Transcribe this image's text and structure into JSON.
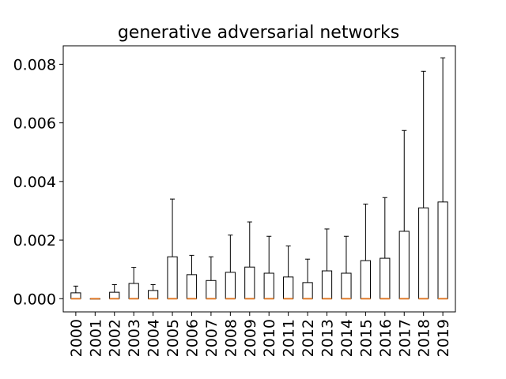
{
  "chart_data": {
    "type": "boxplot",
    "title": "generative adversarial networks",
    "xlabel": "",
    "ylabel": "",
    "categories": [
      "2000",
      "2001",
      "2002",
      "2003",
      "2004",
      "2005",
      "2006",
      "2007",
      "2008",
      "2009",
      "2010",
      "2011",
      "2012",
      "2013",
      "2014",
      "2015",
      "2016",
      "2017",
      "2018",
      "2019"
    ],
    "boxes": [
      {
        "category": "2000",
        "whislo": 0,
        "q1": 0,
        "med": 0,
        "q3": 0.0002,
        "whishi": 0.00043
      },
      {
        "category": "2001",
        "whislo": 0,
        "q1": 0,
        "med": 0,
        "q3": 0,
        "whishi": 0
      },
      {
        "category": "2002",
        "whislo": 0,
        "q1": 0,
        "med": 0,
        "q3": 0.00022,
        "whishi": 0.00048
      },
      {
        "category": "2003",
        "whislo": 0,
        "q1": 0,
        "med": 0,
        "q3": 0.00052,
        "whishi": 0.00107
      },
      {
        "category": "2004",
        "whislo": 0,
        "q1": 0,
        "med": 0,
        "q3": 0.00028,
        "whishi": 0.00048
      },
      {
        "category": "2005",
        "whislo": 0,
        "q1": 0,
        "med": 0,
        "q3": 0.00143,
        "whishi": 0.0034
      },
      {
        "category": "2006",
        "whislo": 0,
        "q1": 0,
        "med": 0,
        "q3": 0.00082,
        "whishi": 0.00148
      },
      {
        "category": "2007",
        "whislo": 0,
        "q1": 0,
        "med": 0,
        "q3": 0.00062,
        "whishi": 0.00143
      },
      {
        "category": "2008",
        "whislo": 0,
        "q1": 0,
        "med": 0,
        "q3": 0.0009,
        "whishi": 0.00217
      },
      {
        "category": "2009",
        "whislo": 0,
        "q1": 0,
        "med": 0,
        "q3": 0.00108,
        "whishi": 0.00262
      },
      {
        "category": "2010",
        "whislo": 0,
        "q1": 0,
        "med": 0,
        "q3": 0.00087,
        "whishi": 0.00213
      },
      {
        "category": "2011",
        "whislo": 0,
        "q1": 0,
        "med": 0,
        "q3": 0.00074,
        "whishi": 0.0018
      },
      {
        "category": "2012",
        "whislo": 0,
        "q1": 0,
        "med": 0,
        "q3": 0.00055,
        "whishi": 0.00135
      },
      {
        "category": "2013",
        "whislo": 0,
        "q1": 0,
        "med": 0,
        "q3": 0.00095,
        "whishi": 0.00238
      },
      {
        "category": "2014",
        "whislo": 0,
        "q1": 0,
        "med": 0,
        "q3": 0.00087,
        "whishi": 0.00213
      },
      {
        "category": "2015",
        "whislo": 0,
        "q1": 0,
        "med": 0,
        "q3": 0.0013,
        "whishi": 0.00323
      },
      {
        "category": "2016",
        "whislo": 0,
        "q1": 0,
        "med": 0,
        "q3": 0.00138,
        "whishi": 0.00345
      },
      {
        "category": "2017",
        "whislo": 0,
        "q1": 0,
        "med": 0,
        "q3": 0.0023,
        "whishi": 0.00574
      },
      {
        "category": "2018",
        "whislo": 0,
        "q1": 0,
        "med": 0,
        "q3": 0.0031,
        "whishi": 0.00776
      },
      {
        "category": "2019",
        "whislo": 0,
        "q1": 0,
        "med": 0,
        "q3": 0.0033,
        "whishi": 0.00822
      }
    ],
    "yticks": [
      0,
      0.002,
      0.004,
      0.006,
      0.008
    ],
    "ytick_labels": [
      "0.000",
      "0.002",
      "0.004",
      "0.006",
      "0.008"
    ],
    "ylim": [
      -0.00045,
      0.00863
    ],
    "grid": false,
    "colors": {
      "box": "#000000",
      "median": "#e07b2a",
      "background": "#ffffff"
    }
  }
}
